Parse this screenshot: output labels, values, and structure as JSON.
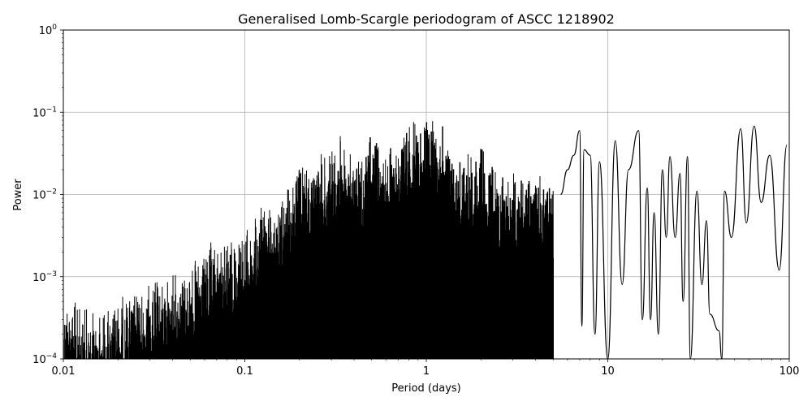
{
  "chart_data": {
    "type": "line",
    "title": "Generalised Lomb-Scargle periodogram of ASCC 1218902",
    "xlabel": "Period (days)",
    "ylabel": "Power",
    "xscale": "log",
    "yscale": "log",
    "xlim": [
      0.01,
      100
    ],
    "ylim": [
      0.0001,
      1
    ],
    "grid": true,
    "line_color": "#000000",
    "x_ticks": [
      {
        "value": 0.01,
        "label": "0.01"
      },
      {
        "value": 0.1,
        "label": "0.1"
      },
      {
        "value": 1,
        "label": "1"
      },
      {
        "value": 10,
        "label": "10"
      },
      {
        "value": 100,
        "label": "100"
      }
    ],
    "y_ticks": [
      {
        "value": 0.0001,
        "base": "10",
        "exp": "−4"
      },
      {
        "value": 0.001,
        "base": "10",
        "exp": "−3"
      },
      {
        "value": 0.01,
        "base": "10",
        "exp": "−2"
      },
      {
        "value": 0.1,
        "base": "10",
        "exp": "−1"
      },
      {
        "value": 1,
        "base": "10",
        "exp": "0"
      }
    ],
    "series": [
      {
        "envelope": [
          [
            0.01,
            0.0006
          ],
          [
            0.0105,
            0.0007
          ],
          [
            0.012,
            0.0005
          ],
          [
            0.015,
            0.0004
          ],
          [
            0.02,
            0.0006
          ],
          [
            0.025,
            0.0007
          ],
          [
            0.03,
            0.0009
          ],
          [
            0.035,
            0.001
          ],
          [
            0.04,
            0.0012
          ],
          [
            0.05,
            0.0015
          ],
          [
            0.06,
            0.002
          ],
          [
            0.065,
            0.0027
          ],
          [
            0.08,
            0.003
          ],
          [
            0.1,
            0.004
          ],
          [
            0.12,
            0.006
          ],
          [
            0.13,
            0.012
          ],
          [
            0.15,
            0.007
          ],
          [
            0.18,
            0.015
          ],
          [
            0.2,
            0.025
          ],
          [
            0.25,
            0.03
          ],
          [
            0.3,
            0.04
          ],
          [
            0.33,
            0.065
          ],
          [
            0.35,
            0.04
          ],
          [
            0.4,
            0.03
          ],
          [
            0.45,
            0.03
          ],
          [
            0.5,
            0.06
          ],
          [
            0.6,
            0.04
          ],
          [
            0.8,
            0.08
          ],
          [
            1.0,
            0.09
          ],
          [
            1.2,
            0.08
          ],
          [
            1.5,
            0.03
          ],
          [
            2.0,
            0.04
          ],
          [
            2.5,
            0.02
          ],
          [
            3.0,
            0.02
          ],
          [
            4.0,
            0.02
          ],
          [
            5.0,
            0.015
          ]
        ],
        "peaks": [
          [
            5.5,
            0.01
          ],
          [
            6.0,
            0.02
          ],
          [
            6.5,
            0.03
          ],
          [
            7.0,
            0.06
          ],
          [
            7.4,
            0.035
          ],
          [
            8.0,
            0.03
          ],
          [
            9.0,
            0.025
          ],
          [
            11.0,
            0.045
          ],
          [
            13.0,
            0.02
          ],
          [
            14.8,
            0.06
          ],
          [
            16.5,
            0.012
          ],
          [
            18.0,
            0.006
          ],
          [
            20.0,
            0.02
          ],
          [
            22.0,
            0.029
          ],
          [
            25.0,
            0.018
          ],
          [
            27.5,
            0.029
          ],
          [
            31.0,
            0.011
          ],
          [
            35.0,
            0.0048
          ],
          [
            44.0,
            0.011
          ],
          [
            54.0,
            0.063
          ],
          [
            64.0,
            0.068
          ],
          [
            78.0,
            0.03
          ],
          [
            97.0,
            0.04
          ]
        ],
        "troughs": [
          [
            7.2,
            0.00025
          ],
          [
            8.5,
            0.0002
          ],
          [
            10.0,
            0.0001
          ],
          [
            12.0,
            0.0008
          ],
          [
            15.5,
            0.0003
          ],
          [
            17.2,
            0.0003
          ],
          [
            19.0,
            0.0002
          ],
          [
            21.0,
            0.003
          ],
          [
            23.5,
            0.003
          ],
          [
            26.0,
            0.0005
          ],
          [
            28.5,
            0.0001
          ],
          [
            33.0,
            0.0008
          ],
          [
            36.5,
            0.00035
          ],
          [
            41.0,
            0.00022
          ],
          [
            42.5,
            0.0001
          ],
          [
            48.0,
            0.003
          ],
          [
            58.0,
            0.0045
          ],
          [
            70.0,
            0.008
          ],
          [
            88.0,
            0.0012
          ]
        ]
      }
    ]
  }
}
